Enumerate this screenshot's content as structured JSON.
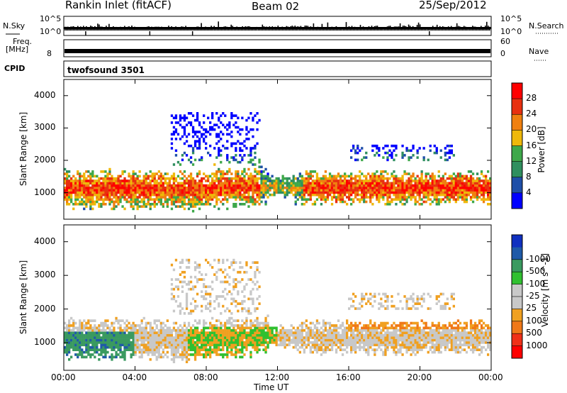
{
  "header": {
    "station": "Rankin Inlet (fitACF)",
    "beam": "Beam 02",
    "date": "25/Sep/2012"
  },
  "noise_panel": {
    "left_label": "N.Sky",
    "left_top": "10^5",
    "left_bottom": "10^0",
    "right_top": "10^5",
    "right_bottom": "10^0",
    "right_label": "N.Search"
  },
  "freq_panel": {
    "left_label_1": "Freq.",
    "left_label_2": "[MHz]",
    "left_bottom": "8",
    "right_top": "60",
    "right_bottom": "0",
    "right_label": "Nave"
  },
  "cpid_panel": {
    "label": "CPID",
    "program": "twofsound 3501"
  },
  "colors": {
    "power_scale": [
      "#0000ff",
      "#1f4fa8",
      "#2f8f5f",
      "#3ea84a",
      "#eeb80a",
      "#f08010",
      "#e83010",
      "#ff0000"
    ],
    "velocity_scale": [
      "#ff0000",
      "#f03018",
      "#f07818",
      "#f0a020",
      "#c8c8c8",
      "#c8c8c8",
      "#30c030",
      "#3a9a60",
      "#1f5aa8",
      "#1030c0"
    ]
  },
  "chart_data": [
    {
      "type": "heatmap",
      "name": "power",
      "xlabel": "",
      "ylabel": "Slant Range [km]",
      "colorbar_label": "Power [dB]",
      "colorbar_ticks": [
        4,
        8,
        12,
        16,
        20,
        24,
        28
      ],
      "x_ticks": [
        "00:00",
        "04:00",
        "08:00",
        "12:00",
        "16:00",
        "20:00",
        "00:00"
      ],
      "y_ticks": [
        1000,
        2000,
        3000,
        4000
      ],
      "xlim_hours": [
        0,
        24
      ],
      "ylim_km": [
        180,
        4500
      ],
      "echo_regions_km": [
        {
          "t": [
            0,
            6
          ],
          "r": [
            400,
            1900
          ],
          "level": 24
        },
        {
          "t": [
            6,
            11
          ],
          "r": [
            500,
            1800
          ],
          "level": 22
        },
        {
          "t": [
            11,
            13
          ],
          "r": [
            800,
            1500
          ],
          "level": 14
        },
        {
          "t": [
            13,
            24
          ],
          "r": [
            600,
            1700
          ],
          "level": 24
        }
      ]
    },
    {
      "type": "heatmap",
      "name": "velocity",
      "xlabel": "Time UT",
      "ylabel": "Slant Range [km]",
      "colorbar_label": "Velocity [m s^-1]",
      "colorbar_ticks": [
        1000,
        500,
        100,
        25,
        -25,
        -100,
        -500,
        -1000
      ],
      "x_ticks": [
        "00:00",
        "04:00",
        "08:00",
        "12:00",
        "16:00",
        "20:00",
        "00:00"
      ],
      "y_ticks": [
        1000,
        2000,
        3000,
        4000
      ],
      "xlim_hours": [
        0,
        24
      ],
      "ylim_km": [
        180,
        4500
      ]
    }
  ]
}
